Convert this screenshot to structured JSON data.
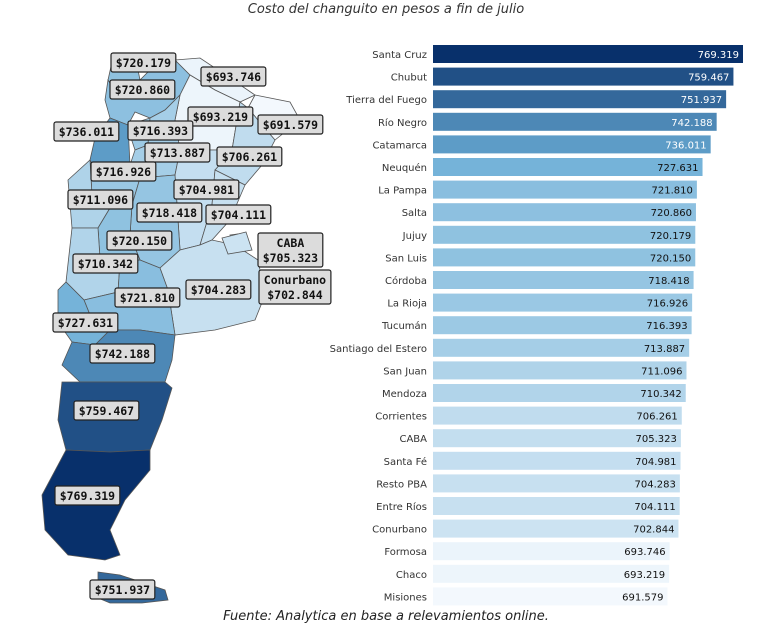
{
  "title": "Costo del changuito en pesos a fin de julio",
  "source": "Fuente: Analytica en base a relevamientos online.",
  "chart_data": [
    {
      "type": "bar",
      "orientation": "horizontal",
      "title": "",
      "xlabel": "",
      "ylabel": "",
      "color_scale": [
        "#f3f8fd",
        "#08306b"
      ],
      "categories": [
        "Santa Cruz",
        "Chubut",
        "Tierra del Fuego",
        "Río Negro",
        "Catamarca",
        "Neuquén",
        "La Pampa",
        "Salta",
        "Jujuy",
        "San Luis",
        "Córdoba",
        "La Rioja",
        "Tucumán",
        "Santiago del Estero",
        "San Juan",
        "Mendoza",
        "Corrientes",
        "CABA",
        "Santa Fé",
        "Resto PBA",
        "Entre Ríos",
        "Conurbano",
        "Formosa",
        "Chaco",
        "Misiones"
      ],
      "values": [
        769.319,
        759.467,
        751.937,
        742.188,
        736.011,
        727.631,
        721.81,
        720.86,
        720.179,
        720.15,
        718.418,
        716.926,
        716.393,
        713.887,
        711.096,
        710.342,
        706.261,
        705.323,
        704.981,
        704.283,
        704.111,
        702.844,
        693.746,
        693.219,
        691.579
      ],
      "labels": [
        "769.319",
        "759.467",
        "751.937",
        "742.188",
        "736.011",
        "727.631",
        "721.810",
        "720.860",
        "720.179",
        "720.150",
        "718.418",
        "716.926",
        "716.393",
        "713.887",
        "711.096",
        "710.342",
        "706.261",
        "705.323",
        "704.981",
        "704.283",
        "704.111",
        "702.844",
        "693.746",
        "693.219",
        "691.579"
      ]
    },
    {
      "type": "choropleth_map",
      "region": "Argentina",
      "labels": [
        {
          "region": "Jujuy",
          "text": "$720.179"
        },
        {
          "region": "Formosa",
          "text": "$693.746"
        },
        {
          "region": "Salta",
          "text": "$720.860"
        },
        {
          "region": "Chaco",
          "text": "$693.219"
        },
        {
          "region": "Misiones",
          "text": "$691.579"
        },
        {
          "region": "Catamarca",
          "text": "$736.011"
        },
        {
          "region": "Tucumán",
          "text": "$716.393"
        },
        {
          "region": "Santiago del Estero",
          "text": "$713.887"
        },
        {
          "region": "Corrientes",
          "text": "$706.261"
        },
        {
          "region": "La Rioja",
          "text": "$716.926"
        },
        {
          "region": "Santa Fé",
          "text": "$704.981"
        },
        {
          "region": "San Juan",
          "text": "$711.096"
        },
        {
          "region": "Córdoba",
          "text": "$718.418"
        },
        {
          "region": "Entre Ríos",
          "text": "$704.111"
        },
        {
          "region": "San Luis",
          "text": "$720.150"
        },
        {
          "region": "CABA",
          "text": "CABA\n$705.323"
        },
        {
          "region": "Mendoza",
          "text": "$710.342"
        },
        {
          "region": "Conurbano",
          "text": "Conurbano\n$702.844"
        },
        {
          "region": "Resto PBA",
          "text": "$704.283"
        },
        {
          "region": "La Pampa",
          "text": "$721.810"
        },
        {
          "region": "Neuquén",
          "text": "$727.631"
        },
        {
          "region": "Río Negro",
          "text": "$742.188"
        },
        {
          "region": "Chubut",
          "text": "$759.467"
        },
        {
          "region": "Santa Cruz",
          "text": "$769.319"
        },
        {
          "region": "Tierra del Fuego",
          "text": "$751.937"
        }
      ]
    }
  ]
}
